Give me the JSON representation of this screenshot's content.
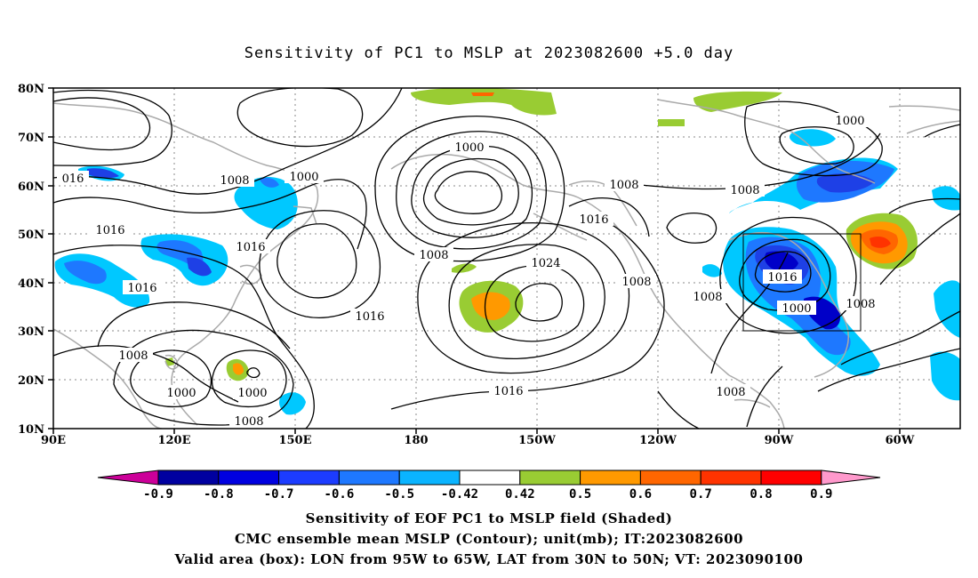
{
  "title": "Sensitivity of PC1 to MSLP at 2023082600 +5.0 day",
  "map": {
    "lat_labels": [
      "80N",
      "70N",
      "60N",
      "50N",
      "40N",
      "30N",
      "20N",
      "10N"
    ],
    "lon_labels": [
      "90E",
      "120E",
      "150E",
      "180",
      "150W",
      "120W",
      "90W",
      "60W"
    ],
    "valid_box": {
      "lon_from": "95W",
      "lon_to": "65W",
      "lat_from": "30N",
      "lat_to": "50N"
    },
    "contour_labels": [
      "1000",
      "1008",
      "016",
      "1000",
      "1016",
      "1016",
      "1016",
      "1008",
      "1024",
      "1016",
      "1008",
      "1008",
      "1016",
      "1008",
      "1016",
      "1008",
      "1008",
      "1000",
      "1000",
      "1000",
      "1008",
      "1008",
      "1008",
      "1000"
    ],
    "colors": {
      "dark_blue": "#0000c8",
      "blue": "#0030e6",
      "mid_blue": "#1a6cf0",
      "light_blue": "#00c8ff",
      "green": "#99cc33",
      "orange": "#ff9900",
      "dark_orange": "#ff6600",
      "land": "#aaaaaa"
    }
  },
  "colorbar": {
    "labels": [
      "-0.9",
      "-0.8",
      "-0.7",
      "-0.6",
      "-0.5",
      "-0.42",
      "0.42",
      "0.5",
      "0.6",
      "0.7",
      "0.8",
      "0.9"
    ],
    "colors": [
      "#0000a0",
      "#0000e0",
      "#1c3cff",
      "#1e78ff",
      "#0ab4ff",
      "#ffffff",
      "#99cc33",
      "#ff9900",
      "#ff6600",
      "#ff3300",
      "#ff0000"
    ],
    "low_arrow_color": "#cc0099",
    "high_arrow_color": "#ff99cc"
  },
  "captions": {
    "line1": "Sensitivity of EOF PC1 to MSLP field (Shaded)",
    "line2": "CMC ensemble mean MSLP (Contour); unit(mb); IT:2023082600",
    "line3": "Valid area (box): LON from 95W to 65W, LAT from 30N to 50N; VT: 2023090100"
  }
}
